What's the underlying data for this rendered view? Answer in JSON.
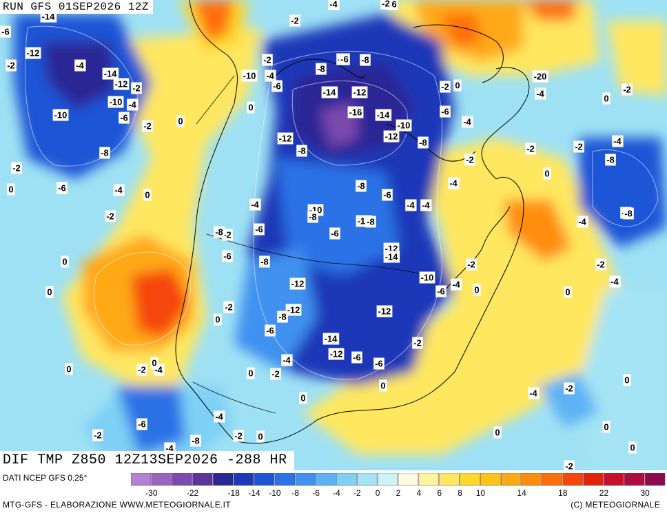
{
  "header": {
    "run_label": "RUN GFS 01SEP2026 12Z",
    "map_title": "DIF TMP Z850 12Z13SEP2026 -288 HR"
  },
  "footer": {
    "data_source": "DATI NCEP GFS 0.25°",
    "credit_left": "MTG-GFS - ELABORAZIONE WWW.METEOGIORNALE.IT",
    "credit_right": "(C) METEOGIORNALE"
  },
  "legend": {
    "colors": [
      "#b77fd4",
      "#9a63c2",
      "#7c4aae",
      "#5d3497",
      "#2a2895",
      "#1f39b8",
      "#1e55d6",
      "#2b72e6",
      "#3f91f0",
      "#5cb2f5",
      "#7fd0f6",
      "#a4e4f5",
      "#ccf3f5",
      "#fffbe0",
      "#fff3a0",
      "#ffe760",
      "#ffd82c",
      "#ffc41a",
      "#ffa914",
      "#ff8d10",
      "#ff6e0c",
      "#f5470a",
      "#e2230c",
      "#c8102a",
      "#ad0d3f",
      "#8d0a4f"
    ],
    "tick_labels": [
      "-30",
      "-22",
      "-18",
      "-14",
      "-10",
      "-8",
      "-6",
      "-4",
      "-2",
      "0",
      "2",
      "4",
      "6",
      "8",
      "10",
      "14",
      "18",
      "22",
      "30"
    ]
  },
  "map_labels": [
    {
      "t": "-14"
    },
    {
      "t": "-6"
    },
    {
      "t": "-2"
    },
    {
      "t": "-4"
    },
    {
      "t": "-2"
    },
    {
      "t": "-4"
    },
    {
      "t": "-6"
    },
    {
      "t": "-12"
    },
    {
      "t": "-2"
    },
    {
      "t": "-14"
    },
    {
      "t": "-12"
    },
    {
      "t": "-2"
    },
    {
      "t": "-10"
    },
    {
      "t": "-4"
    },
    {
      "t": "-6"
    },
    {
      "t": "-10"
    },
    {
      "t": "-2"
    },
    {
      "t": "0"
    },
    {
      "t": "-8"
    },
    {
      "t": "-2"
    },
    {
      "t": "-6"
    },
    {
      "t": "-4"
    },
    {
      "t": "0"
    },
    {
      "t": "-2"
    },
    {
      "t": "-4"
    },
    {
      "t": "-2"
    },
    {
      "t": "-8"
    },
    {
      "t": "-10"
    },
    {
      "t": "-6"
    },
    {
      "t": "-4"
    },
    {
      "t": "-8"
    },
    {
      "t": "-6"
    },
    {
      "t": "-14"
    },
    {
      "t": "-12"
    },
    {
      "t": "-2"
    },
    {
      "t": "0"
    },
    {
      "t": "-16"
    },
    {
      "t": "-14"
    },
    {
      "t": "-10"
    },
    {
      "t": "-12"
    },
    {
      "t": "-8"
    },
    {
      "t": "-12"
    },
    {
      "t": "-8"
    },
    {
      "t": "-6"
    },
    {
      "t": "-4"
    },
    {
      "t": "-20"
    },
    {
      "t": "-4"
    },
    {
      "t": "-2"
    },
    {
      "t": "0"
    },
    {
      "t": "-2"
    },
    {
      "t": "-2"
    },
    {
      "t": "-4"
    },
    {
      "t": "-8"
    },
    {
      "t": "0"
    },
    {
      "t": "-2"
    },
    {
      "t": "-8"
    },
    {
      "t": "-6"
    },
    {
      "t": "0"
    },
    {
      "t": "-8"
    },
    {
      "t": "-6"
    },
    {
      "t": "-4"
    },
    {
      "t": "-4"
    },
    {
      "t": "-10"
    },
    {
      "t": "-8"
    },
    {
      "t": "-6"
    },
    {
      "t": "-10"
    },
    {
      "t": "-4"
    },
    {
      "t": "0"
    },
    {
      "t": "-2"
    },
    {
      "t": "-6"
    },
    {
      "t": "-8"
    },
    {
      "t": "-6"
    },
    {
      "t": "-4"
    },
    {
      "t": "-12"
    },
    {
      "t": "-14"
    },
    {
      "t": "-4"
    },
    {
      "t": "-8"
    },
    {
      "t": "-2"
    },
    {
      "t": "-10"
    },
    {
      "t": "-12"
    },
    {
      "t": "-6"
    },
    {
      "t": "-4"
    },
    {
      "t": "-4"
    },
    {
      "t": "0"
    },
    {
      "t": "0"
    },
    {
      "t": "-2"
    },
    {
      "t": "0"
    },
    {
      "t": "-12"
    },
    {
      "t": "-8"
    },
    {
      "t": "-12"
    },
    {
      "t": "-8"
    },
    {
      "t": "-6"
    },
    {
      "t": "0"
    },
    {
      "t": "0"
    },
    {
      "t": "-2"
    },
    {
      "t": "-14"
    },
    {
      "t": "-2"
    },
    {
      "t": "-4"
    },
    {
      "t": "-12"
    },
    {
      "t": "-6"
    },
    {
      "t": "-6"
    },
    {
      "t": "-4"
    },
    {
      "t": "0"
    },
    {
      "t": "-2"
    },
    {
      "t": "0"
    },
    {
      "t": "0"
    },
    {
      "t": "-2"
    },
    {
      "t": "-4"
    },
    {
      "t": "-2"
    },
    {
      "t": "0"
    },
    {
      "t": "-6"
    },
    {
      "t": "-4"
    },
    {
      "t": "-2"
    },
    {
      "t": "0"
    },
    {
      "t": "0"
    },
    {
      "t": "-4"
    },
    {
      "t": "-8"
    },
    {
      "t": "-2"
    },
    {
      "t": "0"
    },
    {
      "t": "0"
    },
    {
      "t": "0"
    },
    {
      "t": "0"
    },
    {
      "t": "-2"
    }
  ]
}
